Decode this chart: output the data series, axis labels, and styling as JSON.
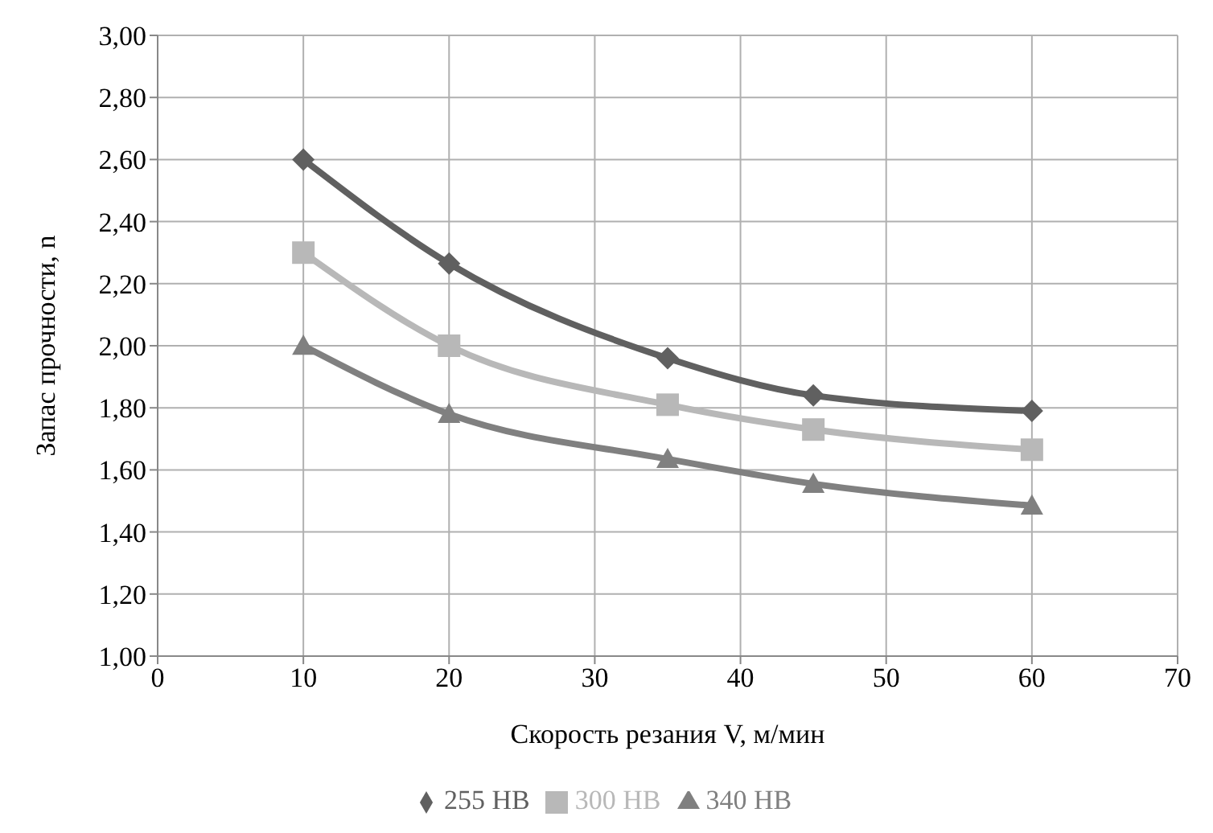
{
  "chart_data": {
    "type": "line",
    "xlabel": "Скорость резания V, м/мин",
    "ylabel": "Запас прочности, n",
    "x": [
      10,
      20,
      35,
      45,
      60
    ],
    "series": [
      {
        "name": "255 HB",
        "color": "#606060",
        "marker": "diamond",
        "values": [
          2.6,
          2.265,
          1.96,
          1.84,
          1.79
        ]
      },
      {
        "name": "300 HB",
        "color": "#b8b8b8",
        "marker": "square",
        "values": [
          2.3,
          2.0,
          1.81,
          1.73,
          1.665
        ]
      },
      {
        "name": "340 HB",
        "color": "#808080",
        "marker": "triangle",
        "values": [
          2.0,
          1.78,
          1.635,
          1.555,
          1.485
        ]
      }
    ],
    "xlim": [
      0,
      70
    ],
    "xticks": [
      0,
      10,
      20,
      30,
      40,
      50,
      60,
      70
    ],
    "ylim": [
      1,
      3
    ],
    "yticks": [
      {
        "value": 1,
        "label": "1,00"
      },
      {
        "value": 1.2,
        "label": "1,20"
      },
      {
        "value": 1.4,
        "label": "1,40"
      },
      {
        "value": 1.6,
        "label": "1,60"
      },
      {
        "value": 1.8,
        "label": "1,80"
      },
      {
        "value": 2,
        "label": "2,00"
      },
      {
        "value": 2.2,
        "label": "2,20"
      },
      {
        "value": 2.4,
        "label": "2,40"
      },
      {
        "value": 2.6,
        "label": "2,60"
      },
      {
        "value": 2.8,
        "label": "2,80"
      },
      {
        "value": 3,
        "label": "3,00"
      }
    ],
    "grid": true,
    "legend": "bottom",
    "line_style": "solid"
  }
}
